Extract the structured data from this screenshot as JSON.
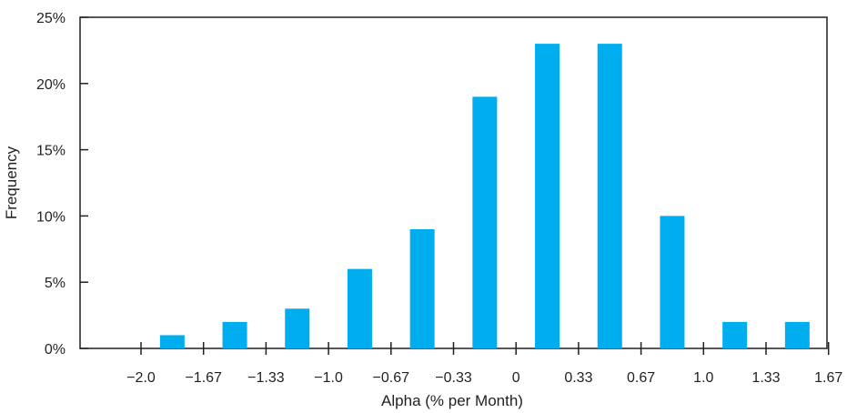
{
  "chart_data": {
    "type": "bar",
    "title": "",
    "xlabel": "Alpha (% per Month)",
    "ylabel": "Frequency",
    "x_tick_labels": [
      "−2.0",
      "−1.67",
      "−1.33",
      "−1.0",
      "−0.67",
      "−0.33",
      "0",
      "0.33",
      "0.67",
      "1.0",
      "1.33",
      "1.67"
    ],
    "y_tick_labels": [
      "0%",
      "5%",
      "10%",
      "15%",
      "20%",
      "25%"
    ],
    "y_ticks": [
      0,
      5,
      10,
      15,
      20,
      25
    ],
    "bin_edges": [
      -2.0,
      -1.67,
      -1.33,
      -1.0,
      -0.67,
      -0.33,
      0,
      0.33,
      0.67,
      1.0,
      1.33,
      1.67
    ],
    "values": [
      1,
      2,
      3,
      6,
      9,
      19,
      23,
      23,
      10,
      2,
      2
    ],
    "ylim": [
      0,
      25
    ],
    "grid": false,
    "bar_color": "#00aeef",
    "axis_color": "#231f20"
  }
}
